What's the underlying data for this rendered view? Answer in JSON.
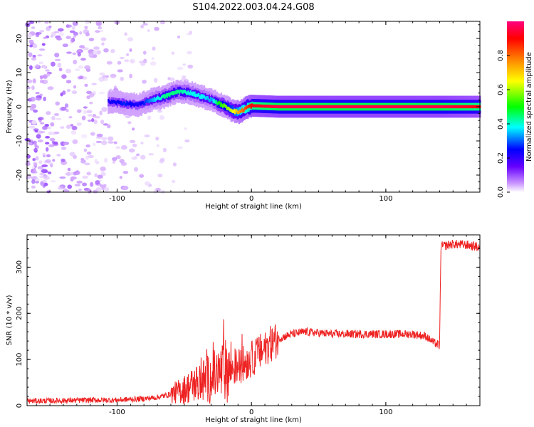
{
  "title": "S104.2022.003.04.24.G08",
  "chart_data": [
    {
      "type": "heatmap",
      "name": "spectrogram",
      "xlabel": "Height of straight line (km)",
      "ylabel": "Frequency (Hz)",
      "xlim": [
        -167,
        170
      ],
      "ylim": [
        -25,
        25
      ],
      "x_ticks": [
        -100,
        0,
        100
      ],
      "y_ticks": [
        -20,
        -10,
        0,
        10,
        20
      ],
      "colorbar": {
        "label": "Normalized spectral amplitude",
        "range": [
          0,
          1
        ],
        "ticks": [
          0.0,
          0.2,
          0.4,
          0.6,
          0.8
        ],
        "tick_labels": [
          "0.0",
          "0.2",
          "0.4",
          "0.6",
          "0.8"
        ],
        "colormap": [
          "#ffffff",
          "#cc99ff",
          "#6600ff",
          "#0000ff",
          "#00ffff",
          "#00ff00",
          "#ffff00",
          "#ff8000",
          "#ff0000",
          "#ff0080"
        ]
      },
      "ridge": {
        "x": [
          -107,
          -95,
          -85,
          -75,
          -65,
          -55,
          -45,
          -38,
          -30,
          -25,
          -20,
          -15,
          -12,
          -10,
          -7,
          -3,
          0,
          20,
          60,
          100,
          140,
          170
        ],
        "frequency_hz": [
          1.5,
          1,
          0.5,
          2,
          3,
          4.5,
          4,
          3,
          2,
          1,
          0,
          -1,
          -1.5,
          -1.5,
          -1,
          0,
          0.3,
          0,
          0,
          0,
          0,
          0
        ],
        "amplitude": [
          0.3,
          0.35,
          0.3,
          0.4,
          0.5,
          0.5,
          0.45,
          0.45,
          0.4,
          0.55,
          0.6,
          0.65,
          0.7,
          0.75,
          0.8,
          0.85,
          0.9,
          0.95,
          0.95,
          0.95,
          0.95,
          0.9
        ]
      },
      "noise_region": {
        "x_range": [
          -167,
          -65
        ],
        "frequency_range": [
          -25,
          25
        ]
      }
    },
    {
      "type": "line",
      "name": "snr",
      "xlabel": "Height of straight line (km)",
      "ylabel": "SNR (10 * v/v)",
      "xlim": [
        -167,
        170
      ],
      "ylim": [
        0,
        370
      ],
      "x_ticks": [
        -100,
        0,
        100
      ],
      "y_ticks": [
        0,
        100,
        200,
        300
      ],
      "color": "#ee2222",
      "x": [
        -167,
        -140,
        -120,
        -100,
        -80,
        -70,
        -60,
        -50,
        -40,
        -30,
        -20,
        -10,
        0,
        10,
        20,
        30,
        40,
        60,
        80,
        100,
        120,
        130,
        135,
        140,
        141,
        150,
        160,
        170
      ],
      "y": [
        10,
        11,
        12,
        12,
        15,
        18,
        25,
        35,
        50,
        60,
        75,
        85,
        100,
        125,
        145,
        155,
        160,
        155,
        155,
        155,
        155,
        150,
        138,
        130,
        345,
        350,
        348,
        343
      ]
    }
  ]
}
